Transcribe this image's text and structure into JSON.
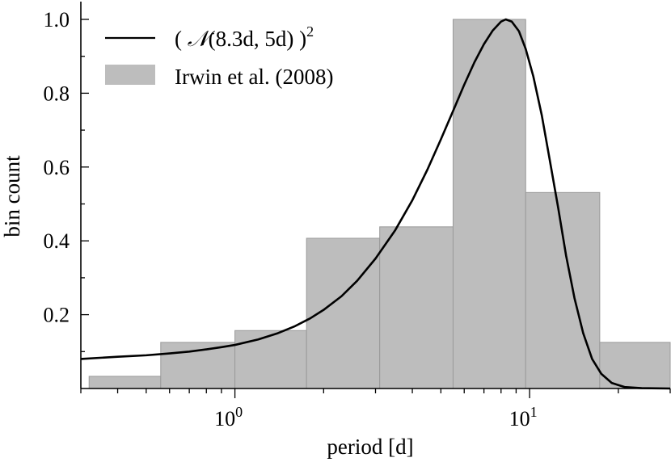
{
  "chart_data": {
    "type": "bar",
    "xlabel": "period [d]",
    "ylabel": "bin count",
    "xscale": "log",
    "xlim": [
      0.3,
      30
    ],
    "ylim": [
      0,
      1.0
    ],
    "y_ticks": [
      "0.2",
      "0.4",
      "0.6",
      "0.8",
      "1.0"
    ],
    "x_ticks": [
      {
        "base": "10",
        "exp": "0",
        "value": 1
      },
      {
        "base": "10",
        "exp": "1",
        "value": 10
      }
    ],
    "legend": {
      "placement": "top-left",
      "line_entry": {
        "prefix": "( ",
        "symbol": "𝒩",
        "args": "(8.3d, 5d) )",
        "sup": "2"
      },
      "bar_entry": "Irwin et al. (2008)"
    },
    "histogram": {
      "bins": [
        {
          "x0": 0.32,
          "x1": 0.56,
          "value": 0.033
        },
        {
          "x0": 0.56,
          "x1": 1.0,
          "value": 0.125
        },
        {
          "x0": 1.0,
          "x1": 1.75,
          "value": 0.157
        },
        {
          "x0": 1.75,
          "x1": 3.1,
          "value": 0.407
        },
        {
          "x0": 3.1,
          "x1": 5.5,
          "value": 0.438
        },
        {
          "x0": 5.5,
          "x1": 9.7,
          "value": 1.0
        },
        {
          "x0": 9.7,
          "x1": 17.3,
          "value": 0.531
        },
        {
          "x0": 17.3,
          "x1": 30.0,
          "value": 0.125
        }
      ]
    },
    "curve": {
      "mu": 8.3,
      "sigma": 5,
      "points": [
        [
          0.3,
          0.08
        ],
        [
          0.4,
          0.086
        ],
        [
          0.5,
          0.09
        ],
        [
          0.6,
          0.095
        ],
        [
          0.7,
          0.1
        ],
        [
          0.8,
          0.106
        ],
        [
          0.9,
          0.112
        ],
        [
          1.0,
          0.118
        ],
        [
          1.2,
          0.133
        ],
        [
          1.4,
          0.15
        ],
        [
          1.6,
          0.169
        ],
        [
          1.8,
          0.19
        ],
        [
          2.0,
          0.213
        ],
        [
          2.3,
          0.25
        ],
        [
          2.6,
          0.292
        ],
        [
          3.0,
          0.352
        ],
        [
          3.5,
          0.429
        ],
        [
          4.0,
          0.51
        ],
        [
          4.5,
          0.593
        ],
        [
          5.0,
          0.675
        ],
        [
          5.5,
          0.752
        ],
        [
          6.0,
          0.823
        ],
        [
          6.5,
          0.884
        ],
        [
          7.0,
          0.933
        ],
        [
          7.5,
          0.97
        ],
        [
          8.0,
          0.994
        ],
        [
          8.3,
          1.0
        ],
        [
          8.7,
          0.994
        ],
        [
          9.2,
          0.968
        ],
        [
          9.7,
          0.92
        ],
        [
          10.3,
          0.845
        ],
        [
          11.0,
          0.74
        ],
        [
          11.7,
          0.62
        ],
        [
          12.5,
          0.49
        ],
        [
          13.3,
          0.36
        ],
        [
          14.2,
          0.245
        ],
        [
          15.2,
          0.15
        ],
        [
          16.3,
          0.08
        ],
        [
          17.5,
          0.04
        ],
        [
          19.0,
          0.015
        ],
        [
          21.0,
          0.004
        ],
        [
          24.0,
          0.001
        ],
        [
          30.0,
          0.0
        ]
      ]
    },
    "colors": {
      "bar_fill": "#bdbdbd",
      "bar_edge": "#9a9a9a",
      "curve": "#000000",
      "axis": "#000000"
    }
  }
}
